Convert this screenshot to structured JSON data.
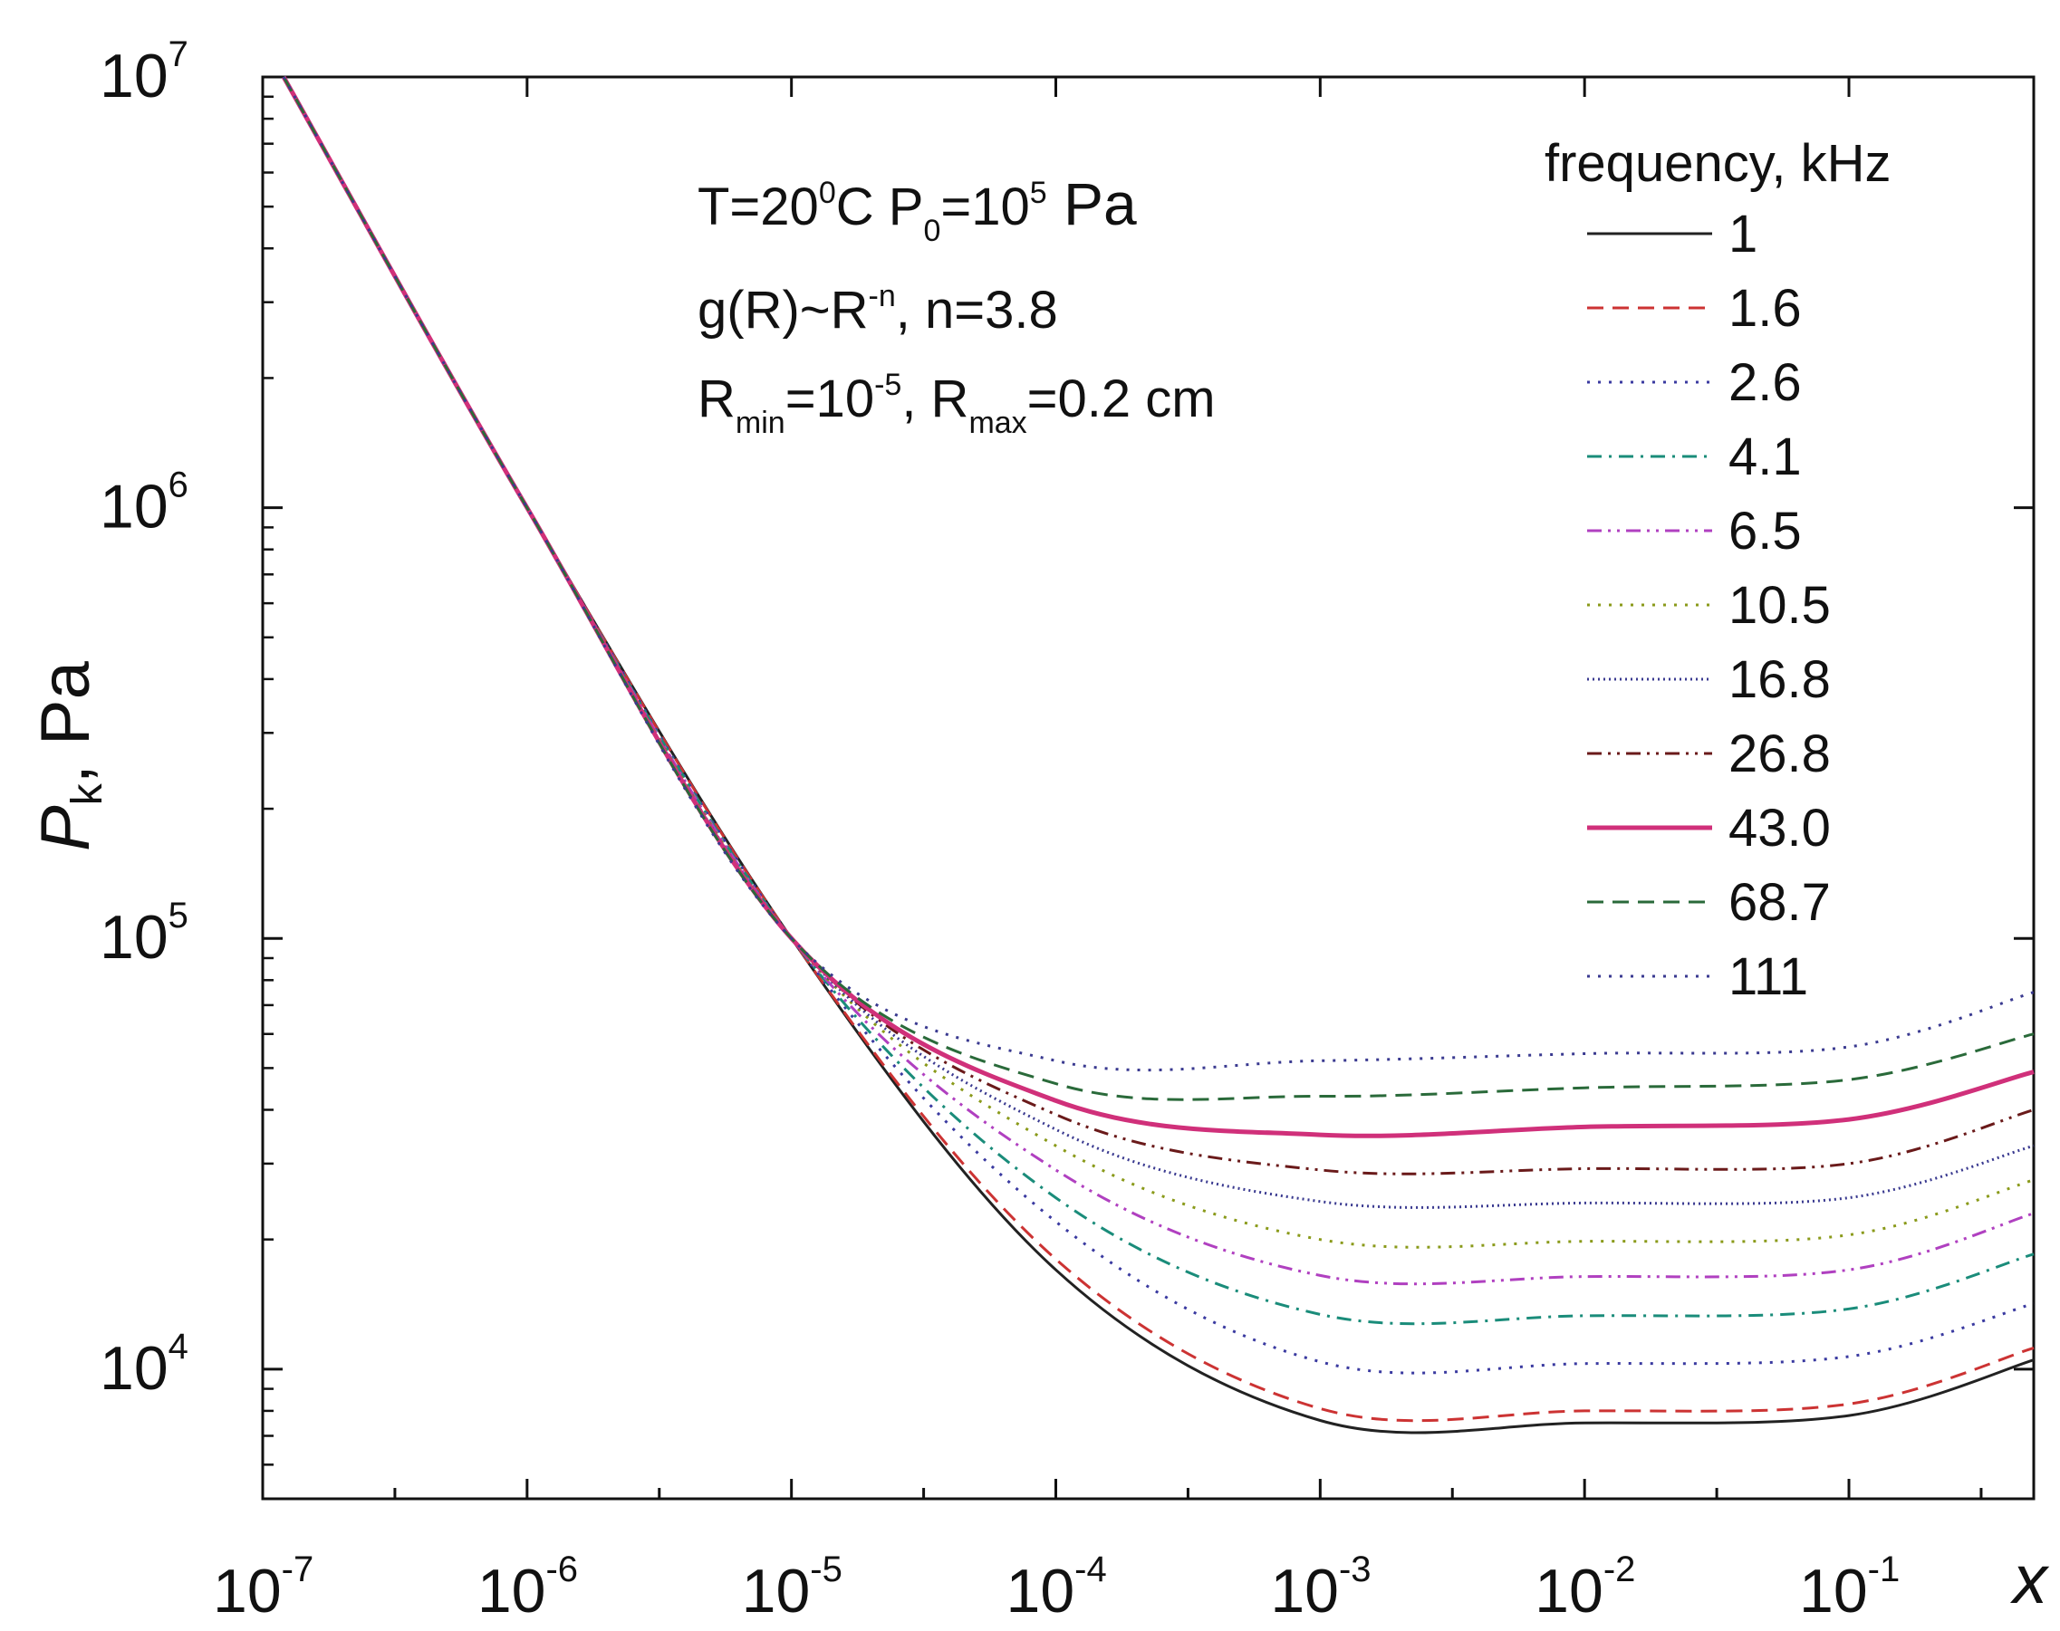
{
  "chart_data": {
    "type": "line",
    "x_scale": "log",
    "y_scale": "log",
    "xlim": [
      1e-07,
      0.5
    ],
    "ylim": [
      5000,
      10000000
    ],
    "x_ticks": [
      {
        "value": 1e-07,
        "base": "10",
        "exp": "-7"
      },
      {
        "value": 1e-06,
        "base": "10",
        "exp": "-6"
      },
      {
        "value": 1e-05,
        "base": "10",
        "exp": "-5"
      },
      {
        "value": 0.0001,
        "base": "10",
        "exp": "-4"
      },
      {
        "value": 0.001,
        "base": "10",
        "exp": "-3"
      },
      {
        "value": 0.01,
        "base": "10",
        "exp": "-2"
      },
      {
        "value": 0.1,
        "base": "10",
        "exp": "-1"
      }
    ],
    "y_ticks": [
      {
        "value": 10000,
        "base": "10",
        "exp": "4"
      },
      {
        "value": 100000,
        "base": "10",
        "exp": "5"
      },
      {
        "value": 1000000,
        "base": "10",
        "exp": "6"
      },
      {
        "value": 10000000,
        "base": "10",
        "exp": "7"
      }
    ],
    "xlabel": "x",
    "ylabel": {
      "main": "P",
      "sub": "k",
      "rest": ", Pa"
    },
    "annotations": [
      {
        "parts": [
          {
            "t": "T=20"
          },
          {
            "t": "0",
            "pos": "sup"
          },
          {
            "t": "C P"
          },
          {
            "t": "0",
            "pos": "sub"
          },
          {
            "t": "=10"
          },
          {
            "t": "5",
            "pos": "sup"
          },
          {
            "t": " Pa",
            "big": true
          }
        ]
      },
      {
        "parts": [
          {
            "t": "g(R)~R"
          },
          {
            "t": "-n",
            "pos": "sup"
          },
          {
            "t": ", n=3.8"
          }
        ]
      },
      {
        "parts": [
          {
            "t": "R"
          },
          {
            "t": "min",
            "pos": "sub"
          },
          {
            "t": "=10"
          },
          {
            "t": "-5",
            "pos": "sup"
          },
          {
            "t": ", R"
          },
          {
            "t": "max",
            "pos": "sub"
          },
          {
            "t": "=0.2 cm"
          }
        ]
      }
    ],
    "legend_title": "frequency, kHz",
    "legend_position": "top-right",
    "series": [
      {
        "name": "1",
        "color": "#222222",
        "dash": "solid",
        "width": 3,
        "y": [
          10000000,
          1000000,
          100000,
          17000,
          7600,
          7500,
          7800,
          10500
        ]
      },
      {
        "name": "1.6",
        "color": "#cc3333",
        "dash": "dash",
        "width": 3,
        "y": [
          10000000,
          1000000,
          100000,
          18000,
          8100,
          8000,
          8300,
          11200
        ]
      },
      {
        "name": "2.6",
        "color": "#3a3aa0",
        "dash": "dot",
        "width": 3,
        "y": [
          10000000,
          1000000,
          100000,
          22000,
          10400,
          10300,
          10700,
          14200
        ]
      },
      {
        "name": "4.1",
        "color": "#1a8c7a",
        "dash": "dashdot",
        "width": 3,
        "y": [
          10000000,
          1000000,
          100000,
          25000,
          13400,
          13300,
          13800,
          18500
        ]
      },
      {
        "name": "6.5",
        "color": "#b040c0",
        "dash": "dashdotdot",
        "width": 3,
        "y": [
          10000000,
          1000000,
          100000,
          29000,
          16500,
          16400,
          17000,
          23000
        ]
      },
      {
        "name": "10.5",
        "color": "#8a9a1a",
        "dash": "dot",
        "width": 3,
        "y": [
          10000000,
          1000000,
          100000,
          33000,
          20000,
          19800,
          20500,
          27500
        ]
      },
      {
        "name": "16.8",
        "color": "#3a3a90",
        "dash": "shortdot",
        "width": 3,
        "y": [
          10000000,
          1000000,
          100000,
          36000,
          24500,
          24300,
          25000,
          33000
        ]
      },
      {
        "name": "26.8",
        "color": "#6a1a1a",
        "dash": "dashdotdot",
        "width": 3,
        "y": [
          10000000,
          1000000,
          100000,
          39000,
          29000,
          29200,
          30000,
          40000
        ]
      },
      {
        "name": "43.0",
        "color": "#d0307a",
        "dash": "solid",
        "width": 5,
        "y": [
          10000000,
          1000000,
          100000,
          42000,
          35000,
          36500,
          38000,
          49000
        ]
      },
      {
        "name": "68.7",
        "color": "#2a6a3a",
        "dash": "dash",
        "width": 3,
        "y": [
          10000000,
          1000000,
          100000,
          46000,
          43000,
          45000,
          47000,
          60000
        ]
      },
      {
        "name": "111",
        "color": "#3a3a90",
        "dash": "dot",
        "width": 3,
        "y": [
          10000000,
          1000000,
          100000,
          52000,
          52000,
          54000,
          56000,
          75000
        ]
      }
    ],
    "x": [
      1.2e-07,
      1e-06,
      1e-05,
      0.0001,
      0.001,
      0.01,
      0.1,
      0.5
    ]
  }
}
